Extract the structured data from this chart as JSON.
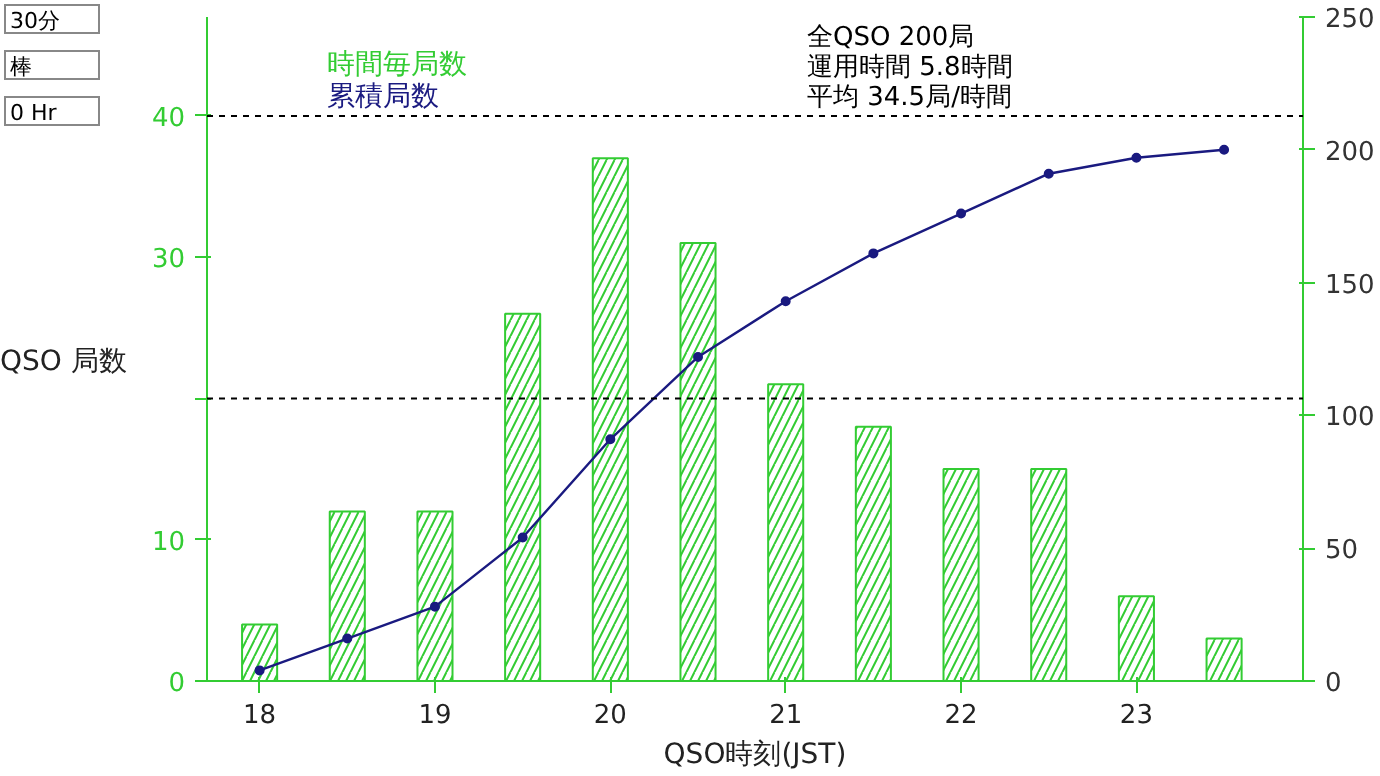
{
  "chart_data": {
    "type": "bar",
    "xlabel": "QSO時刻(JST)",
    "ylabel": "QSO 局数",
    "x": [
      18,
      18.5,
      19,
      19.5,
      20,
      20.5,
      21,
      21.5,
      22,
      22.5,
      23,
      23.5
    ],
    "series": [
      {
        "name": "時間毎局数",
        "color": "#33cc33",
        "values": [
          4,
          12,
          12,
          26,
          37,
          31,
          21,
          18,
          15,
          15,
          6,
          3
        ]
      },
      {
        "name": "累積局数",
        "type": "line",
        "axis": "y2",
        "color": "#1a1a80",
        "marker": "circle",
        "values": [
          4,
          16,
          28,
          54,
          91,
          122,
          143,
          161,
          176,
          191,
          197,
          200
        ]
      }
    ],
    "xlim": [
      17.7,
      23.95
    ],
    "xticks": [
      18,
      19,
      20,
      21,
      22,
      23
    ],
    "ylim": [
      0,
      47
    ],
    "yticks": [
      0,
      10,
      {
        "value": 20,
        "label": null
      },
      30,
      40
    ],
    "y2lim": [
      0,
      250
    ],
    "y2ticks": [
      0,
      50,
      100,
      150,
      200,
      250
    ],
    "ref_lines": [
      {
        "axis": "y",
        "value": 40,
        "label": null,
        "color": "#000000",
        "line_style": "dashed"
      },
      {
        "axis": "y",
        "value": 20,
        "label": null,
        "color": "#000000",
        "line_style": "dashed"
      }
    ],
    "legend": "top left",
    "grid": false,
    "annotations": [
      "全QSO 200局",
      "運用時間 5.8時間",
      "平均 34.5局/時間",
      "30分",
      "棒",
      "0 Hr"
    ]
  }
}
